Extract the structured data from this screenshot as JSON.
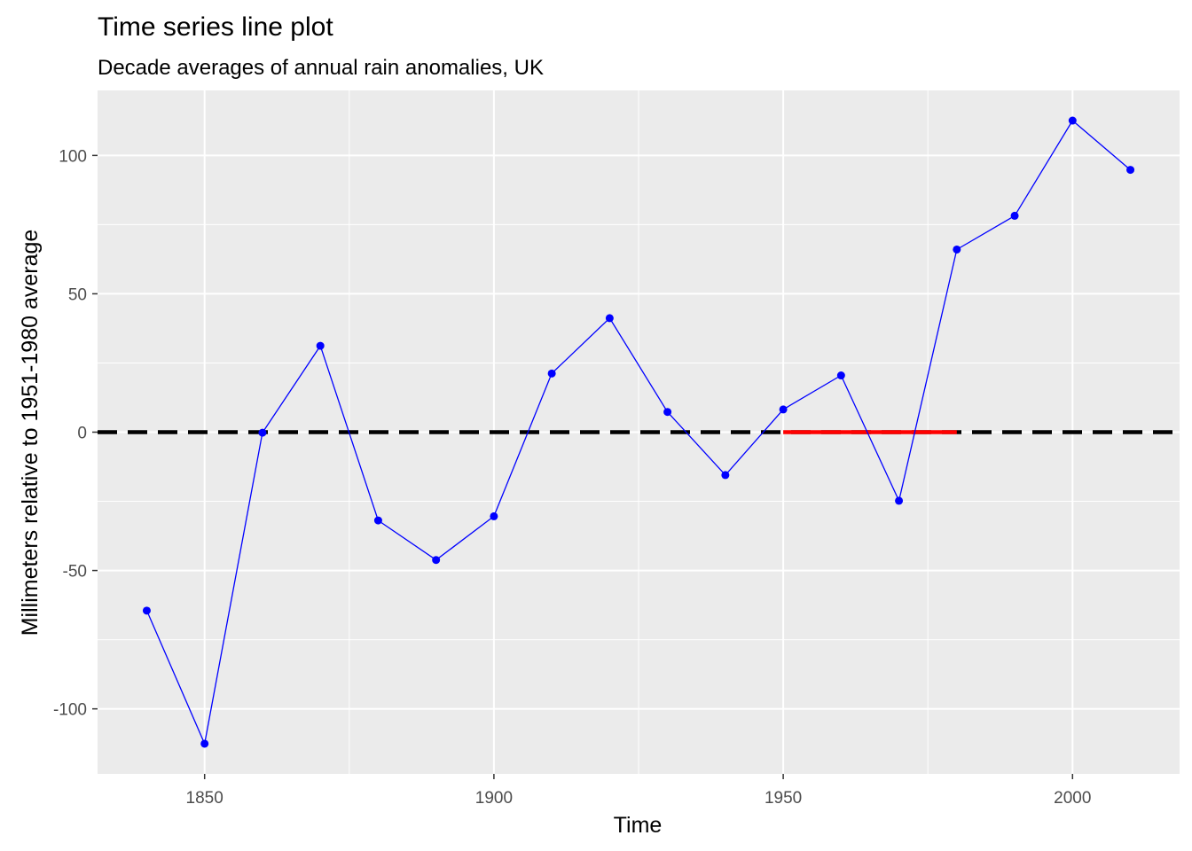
{
  "chart_data": {
    "type": "line",
    "title": "Time series line plot",
    "subtitle": "Decade averages of annual rain anomalies, UK",
    "xlabel": "Time",
    "ylabel": "Millimeters relative to 1951-1980 average",
    "xlim": [
      1831.5,
      2018.5
    ],
    "ylim": [
      -123.5,
      123.5
    ],
    "x_ticks": [
      1850,
      1900,
      1950,
      2000
    ],
    "x_tick_labels": [
      "1850",
      "1900",
      "1950",
      "2000"
    ],
    "y_ticks": [
      -100,
      -50,
      0,
      50,
      100
    ],
    "y_tick_labels": [
      "-100",
      "-50",
      "0",
      "50",
      "100"
    ],
    "grid": true,
    "panel_background": "#ebebeb",
    "grid_color": "#ffffff",
    "series": [
      {
        "color": "#0000ff",
        "x": [
          1840,
          1850,
          1860,
          1870,
          1880,
          1890,
          1900,
          1910,
          1920,
          1930,
          1940,
          1950,
          1960,
          1970,
          1980,
          1990,
          2000,
          2010
        ],
        "y": [
          -64.5,
          -112.6,
          -0.2,
          31.2,
          -31.9,
          -46.2,
          -30.4,
          21.2,
          41.2,
          7.3,
          -15.5,
          8.2,
          20.5,
          -24.8,
          66.0,
          78.2,
          112.6,
          94.8
        ]
      }
    ],
    "reference_lines": [
      {
        "type": "hline",
        "y": 0,
        "style": "dashed",
        "color": "#000000"
      },
      {
        "type": "segment",
        "x": [
          1950,
          1980
        ],
        "y": [
          0,
          0
        ],
        "color": "#ff0000"
      }
    ]
  }
}
